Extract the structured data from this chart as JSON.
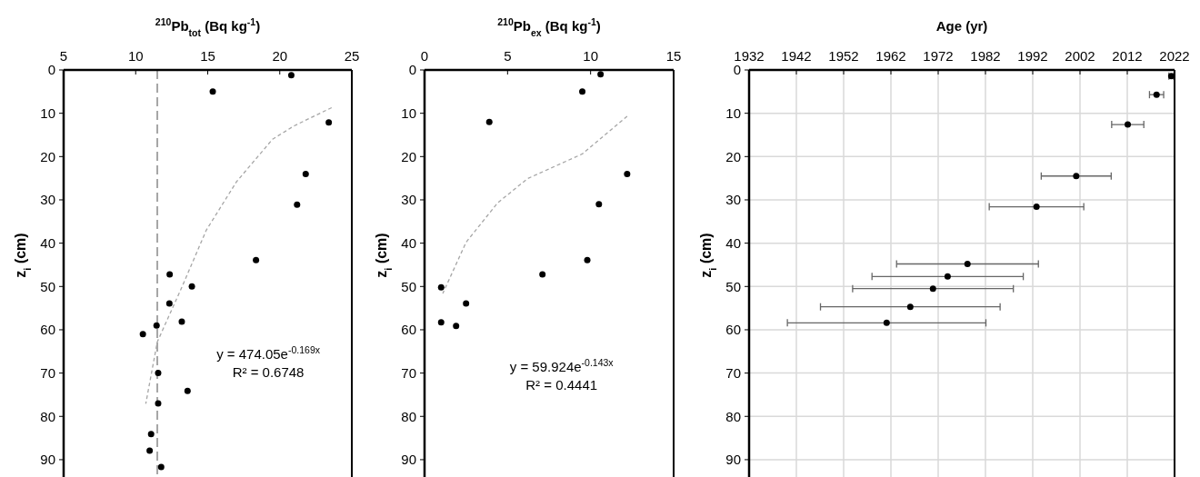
{
  "chart_data": [
    {
      "type": "scatter",
      "xlabel": "$^{210}$Pb$_{tot}$ (Bq kg$^{-1}$)",
      "ylabel": "z$_{i}$ (cm)",
      "xlim": [
        5,
        25
      ],
      "xticks": [
        5,
        10,
        15,
        20,
        25
      ],
      "ylim": [
        94,
        0
      ],
      "yticks": [
        0,
        10,
        20,
        30,
        40,
        50,
        60,
        70,
        80,
        90
      ],
      "marker": "circle",
      "grid": false,
      "series": [
        {
          "color": "#000000",
          "x": [
            20.8,
            15.35,
            23.4,
            21.8,
            21.2,
            18.35,
            12.36,
            13.9,
            12.34,
            13.2,
            11.45,
            10.5,
            11.56,
            13.6,
            11.56,
            11.07,
            10.97,
            11.77
          ],
          "values": [
            1.2,
            5.0,
            12.1,
            24.0,
            31.1,
            43.9,
            47.2,
            50.0,
            53.9,
            58.1,
            59.0,
            61.0,
            70.0,
            74.1,
            77.0,
            84.1,
            87.9,
            91.7
          ]
        },
        {
          "type": "line",
          "color": "#a6a6a6",
          "line_style": "dashed",
          "marker": "none",
          "x": [
            23.6,
            21.0,
            19.5,
            17.0,
            14.9,
            13.2,
            11.5,
            10.7
          ],
          "values": [
            8.7,
            12.9,
            16.0,
            25.8,
            37.0,
            50.2,
            62.8,
            77.1
          ]
        }
      ],
      "ref_lines": [
        {
          "axis": "x",
          "value": 11.5,
          "color": "#a6a6a6",
          "line_style": "dashed"
        }
      ],
      "annotations": [
        "y = 474.05e$^{-0.169x}$",
        "R² = 0.6748"
      ]
    },
    {
      "type": "scatter",
      "xlabel": "$^{210}$Pb$_{ex}$ (Bq kg$^{-1}$)",
      "ylabel": "z$_{i}$ (cm)",
      "xlim": [
        0,
        15
      ],
      "xticks": [
        0,
        5,
        10,
        15
      ],
      "ylim": [
        94,
        0
      ],
      "yticks": [
        0,
        10,
        20,
        30,
        40,
        50,
        60,
        70,
        80,
        90
      ],
      "marker": "circle",
      "grid": false,
      "series": [
        {
          "color": "#000000",
          "x": [
            10.6,
            9.5,
            3.9,
            12.2,
            10.5,
            9.8,
            7.1,
            1.0,
            2.5,
            1.0,
            1.9
          ],
          "values": [
            1.0,
            5.0,
            12.0,
            24.0,
            31.0,
            43.9,
            47.2,
            50.2,
            53.9,
            58.3,
            59.1
          ]
        },
        {
          "type": "line",
          "color": "#a6a6a6",
          "line_style": "dashed",
          "marker": "none",
          "x": [
            12.2,
            9.5,
            6.2,
            4.4,
            2.5,
            1.1
          ],
          "values": [
            10.7,
            19.4,
            25.1,
            30.7,
            39.8,
            51.6
          ]
        }
      ],
      "annotations": [
        "y = 59.924e$^{-0.143x}$",
        "R² = 0.4441"
      ]
    },
    {
      "type": "scatter",
      "xlabel": "Age (yr)",
      "ylabel": "z$_{i}$ (cm)",
      "xlim": [
        1932,
        2022
      ],
      "xticks": [
        1932,
        1942,
        1952,
        1962,
        1972,
        1982,
        1992,
        2002,
        2012,
        2022
      ],
      "ylim": [
        94,
        0
      ],
      "yticks": [
        0,
        10,
        20,
        30,
        40,
        50,
        60,
        70,
        80,
        90
      ],
      "marker": "circle",
      "grid": true,
      "series": [
        {
          "color": "#000000",
          "x": [
            2021.3,
            2018.2,
            2012.1,
            2001.2,
            1992.8,
            1978.2,
            1974.0,
            1970.9,
            1966.1,
            1961.1
          ],
          "values": [
            1.4,
            5.7,
            12.6,
            24.5,
            31.6,
            44.8,
            47.7,
            50.5,
            54.7,
            58.4
          ],
          "xerrors": [
            0.5,
            1.5,
            3.4,
            7.4,
            10,
            15,
            16,
            17,
            19,
            21
          ]
        }
      ]
    }
  ]
}
